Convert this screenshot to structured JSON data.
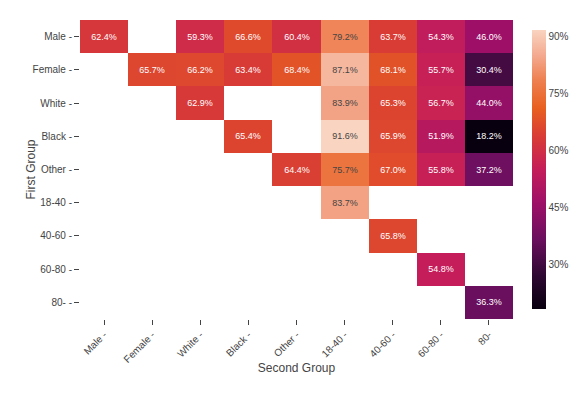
{
  "chart_data": {
    "type": "heatmap",
    "xlabel": "Second Group",
    "ylabel": "First Group",
    "x": [
      "Male -",
      "Female -",
      "White -",
      "Black -",
      "Other -",
      "18-40 -",
      "40-60 -",
      "60-80 -",
      "80-"
    ],
    "y": [
      "Male -",
      "Female -",
      "White -",
      "Black -",
      "Other -",
      "18-40 -",
      "40-60 -",
      "60-80 -",
      "80- -"
    ],
    "values": [
      [
        62.4,
        null,
        59.3,
        66.6,
        60.4,
        79.2,
        63.7,
        54.3,
        46.0
      ],
      [
        null,
        65.7,
        66.2,
        63.4,
        68.4,
        87.1,
        68.1,
        55.7,
        30.4
      ],
      [
        null,
        null,
        62.9,
        null,
        null,
        83.9,
        65.3,
        56.7,
        44.0
      ],
      [
        null,
        null,
        null,
        65.4,
        null,
        91.6,
        65.9,
        51.9,
        18.2
      ],
      [
        null,
        null,
        null,
        null,
        64.4,
        75.7,
        67.0,
        55.8,
        37.2
      ],
      [
        null,
        null,
        null,
        null,
        null,
        83.7,
        null,
        null,
        null
      ],
      [
        null,
        null,
        null,
        null,
        null,
        null,
        65.8,
        null,
        null
      ],
      [
        null,
        null,
        null,
        null,
        null,
        null,
        null,
        54.8,
        null
      ],
      [
        null,
        null,
        null,
        null,
        null,
        null,
        null,
        null,
        36.3
      ]
    ],
    "value_labels": [
      [
        "62.4%",
        null,
        "59.3%",
        "66.6%",
        "60.4%",
        "79.2%",
        "63.7%",
        "54.3%",
        "46.0%"
      ],
      [
        null,
        "65.7%",
        "66.2%",
        "63.4%",
        "68.4%",
        "87.1%",
        "68.1%",
        "55.7%",
        "30.4%"
      ],
      [
        null,
        null,
        "62.9%",
        null,
        null,
        "83.9%",
        "65.3%",
        "56.7%",
        "44.0%"
      ],
      [
        null,
        null,
        null,
        "65.4%",
        null,
        "91.6%",
        "65.9%",
        "51.9%",
        "18.2%"
      ],
      [
        null,
        null,
        null,
        null,
        "64.4%",
        "75.7%",
        "67.0%",
        "55.8%",
        "37.2%"
      ],
      [
        null,
        null,
        null,
        null,
        null,
        "83.7%",
        null,
        null,
        null
      ],
      [
        null,
        null,
        null,
        null,
        null,
        null,
        "65.8%",
        null,
        null
      ],
      [
        null,
        null,
        null,
        null,
        null,
        null,
        null,
        "54.8%",
        null
      ],
      [
        null,
        null,
        null,
        null,
        null,
        null,
        null,
        null,
        "36.3%"
      ]
    ],
    "data_labels": true,
    "grid": false,
    "colorscale": [
      [
        0.0,
        "#08000f"
      ],
      [
        0.12,
        "#2e0832"
      ],
      [
        0.25,
        "#6b0f5e"
      ],
      [
        0.38,
        "#9e1068"
      ],
      [
        0.5,
        "#c41d5a"
      ],
      [
        0.62,
        "#d93c35"
      ],
      [
        0.72,
        "#e86020"
      ],
      [
        0.82,
        "#ee8050"
      ],
      [
        0.91,
        "#f4aa90"
      ],
      [
        1.0,
        "#f9d4c0"
      ]
    ],
    "zlim": [
      18.2,
      91.6
    ],
    "zticks": [
      {
        "value": 30,
        "label": "30%"
      },
      {
        "value": 45,
        "label": "45%"
      },
      {
        "value": 60,
        "label": "60%"
      },
      {
        "value": 75,
        "label": "75%"
      },
      {
        "value": 90,
        "label": "90%"
      }
    ]
  }
}
